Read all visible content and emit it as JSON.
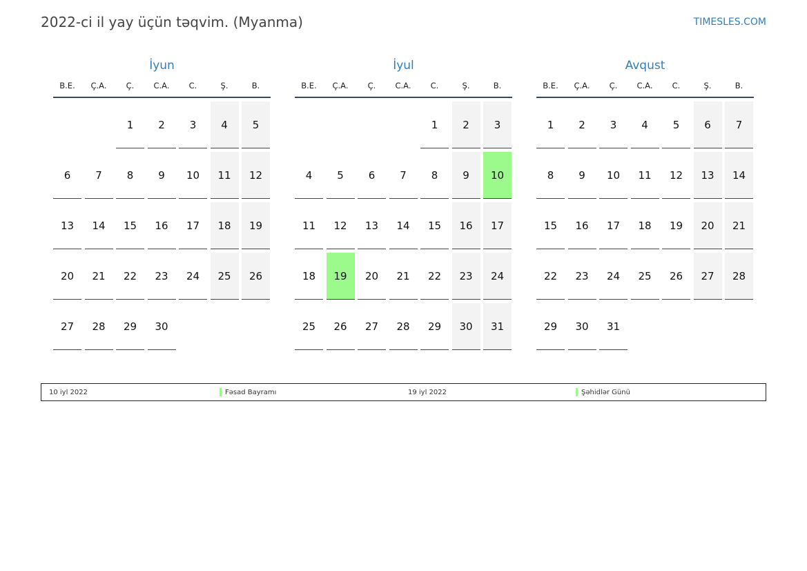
{
  "header": {
    "title": "2022-ci il yay üçün təqvim. (Myanma)",
    "site": "TIMESLES.COM"
  },
  "colors": {
    "accent": "#2f7fbf",
    "weekend": "#f3f3f3",
    "holiday": "#9cf98c"
  },
  "weekdays": [
    "B.E.",
    "Ç.A.",
    "Ç.",
    "C.A.",
    "C.",
    "Ş.",
    "B."
  ],
  "months": [
    {
      "name": "İyun",
      "start_offset": 2,
      "days": 30,
      "holidays": []
    },
    {
      "name": "İyul",
      "start_offset": 4,
      "days": 31,
      "holidays": [
        10,
        19
      ]
    },
    {
      "name": "Avqust",
      "start_offset": 0,
      "days": 31,
      "holidays": []
    }
  ],
  "legend": [
    {
      "date": "10 iyl 2022",
      "name": "Fəsad Bayramı"
    },
    {
      "date": "19 iyl 2022",
      "name": "Şəhidlər Günü"
    }
  ]
}
